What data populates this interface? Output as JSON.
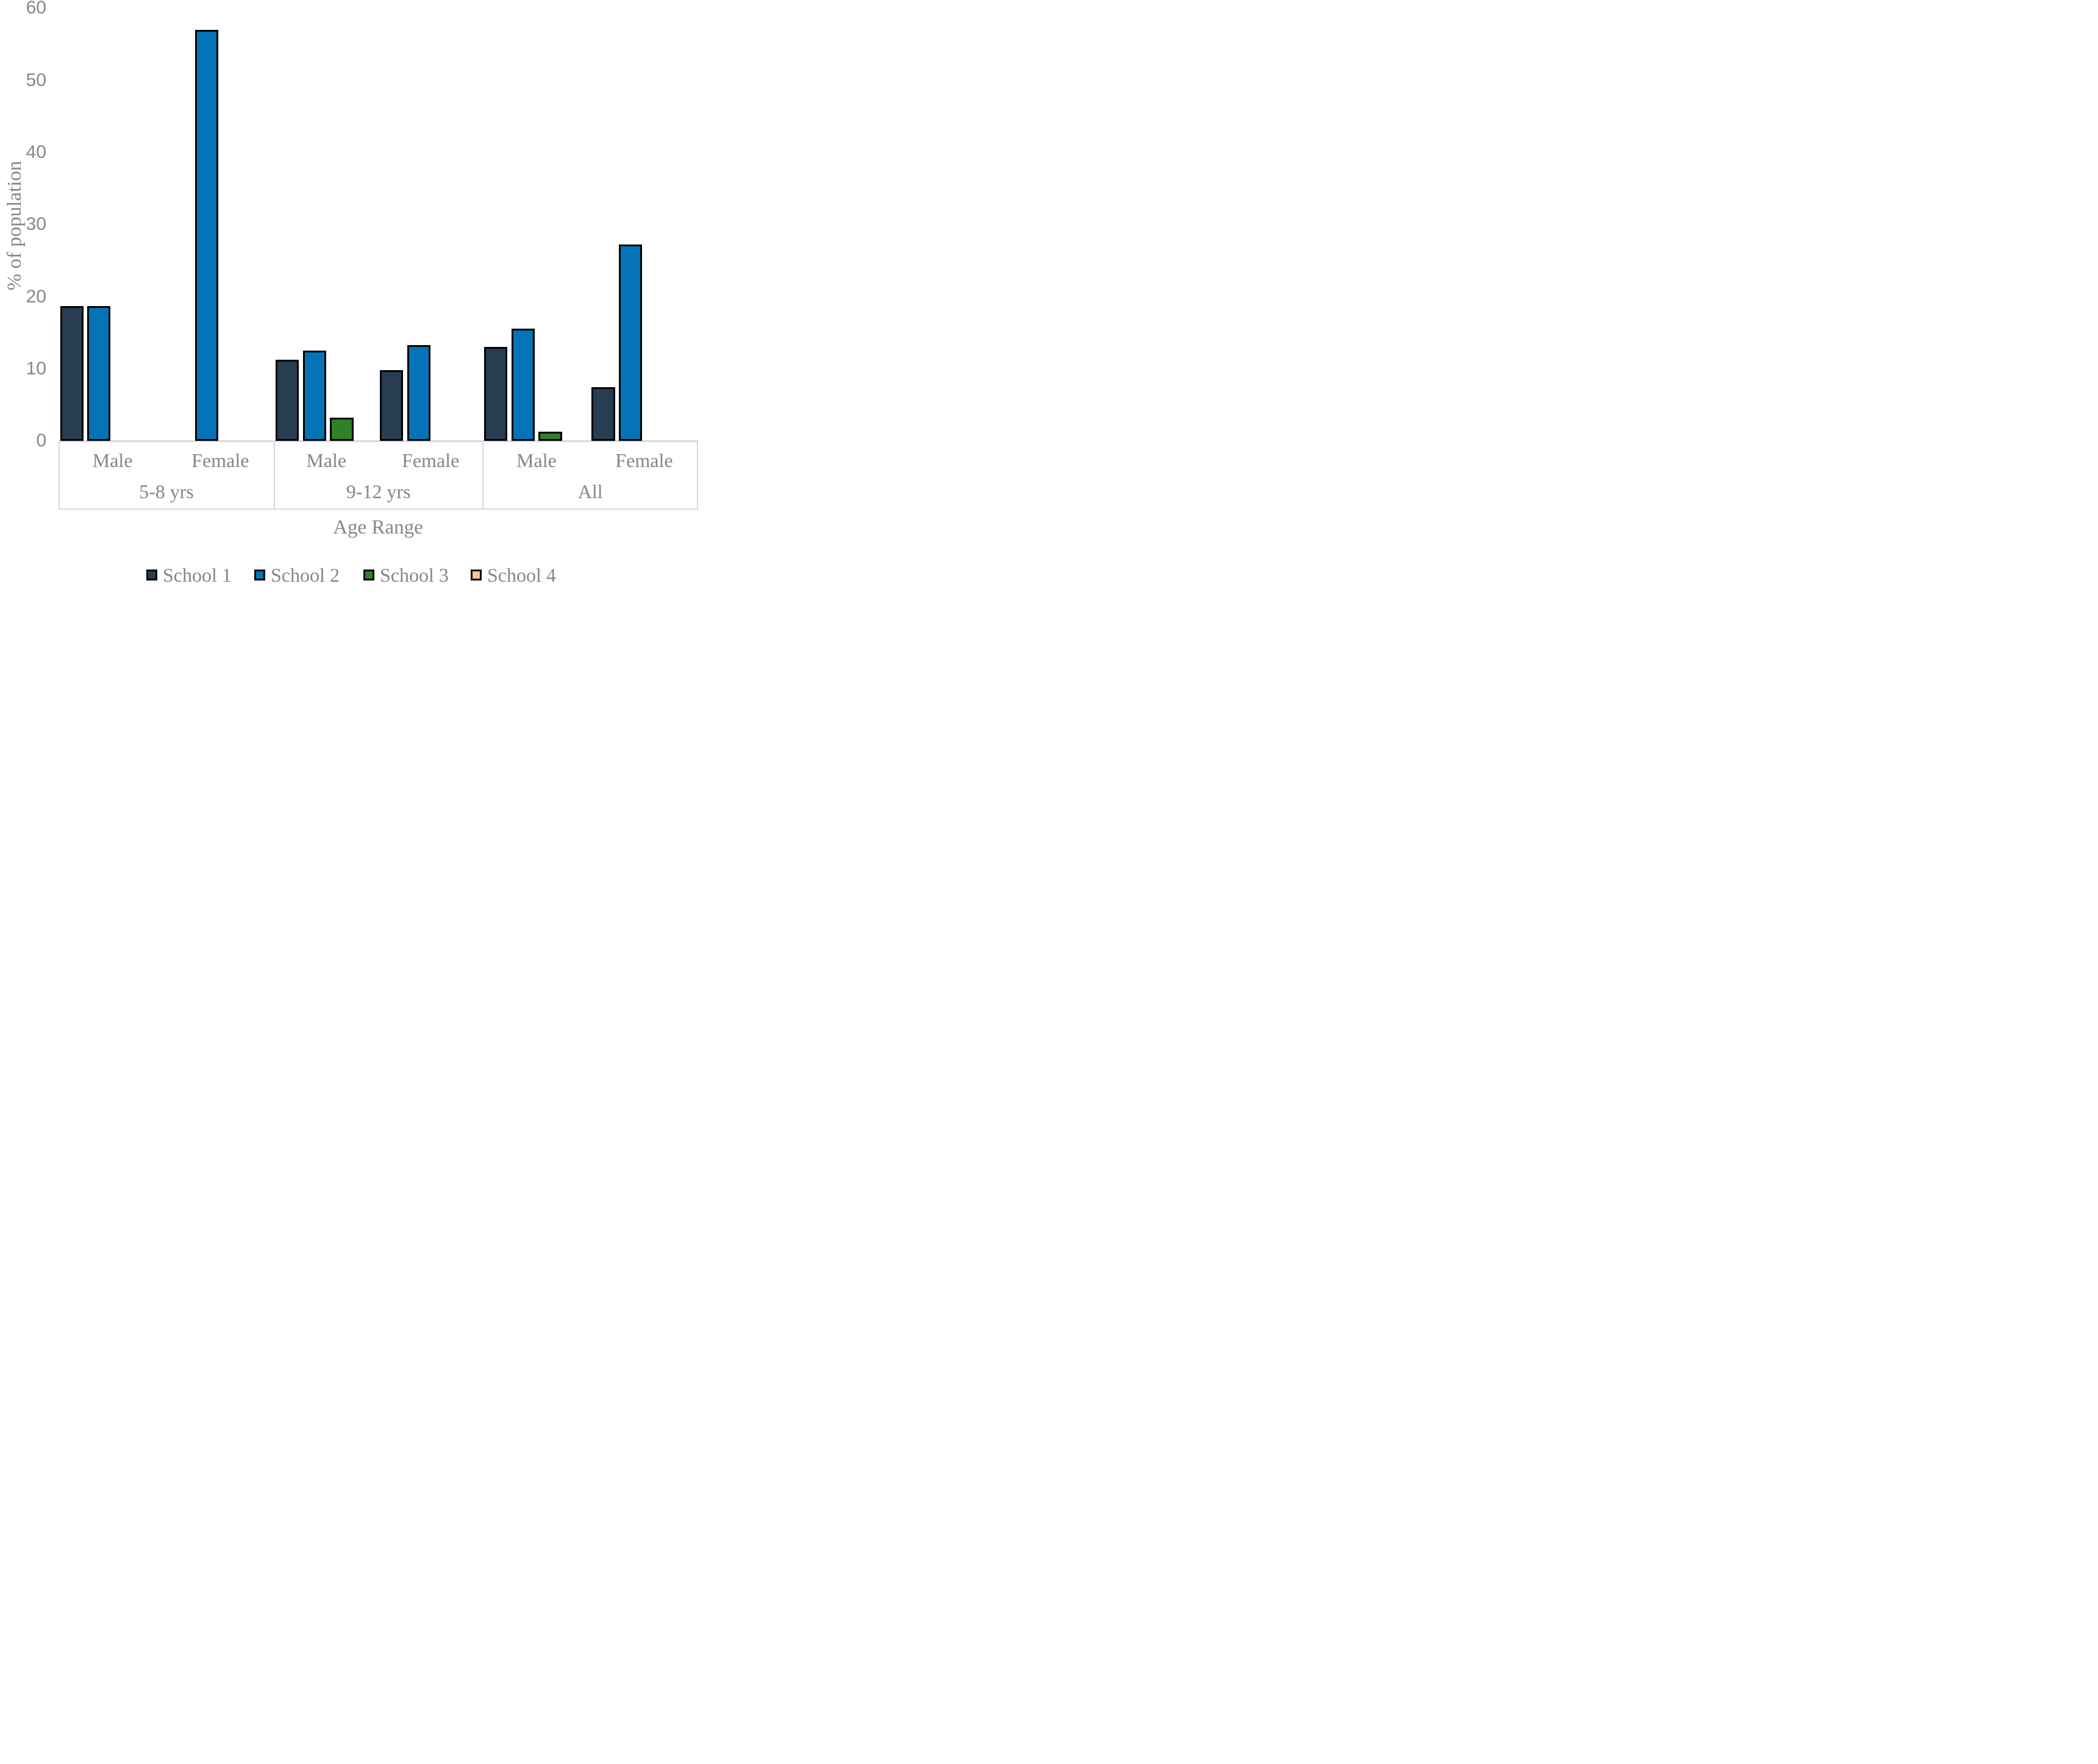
{
  "chart_data": {
    "type": "bar",
    "title": "",
    "xlabel": "Age Range",
    "ylabel": "% of population",
    "ylim": [
      0,
      60
    ],
    "yticks": [
      0,
      10,
      20,
      30,
      40,
      50,
      60
    ],
    "grid": false,
    "legend_position": "bottom",
    "groups": [
      "5-8 yrs",
      "9-12 yrs",
      "All"
    ],
    "subcategories": [
      "Male",
      "Female"
    ],
    "series": [
      {
        "name": "School 1",
        "color": "#293d52",
        "values": [
          [
            18.7,
            0
          ],
          [
            11.3,
            9.8
          ],
          [
            13.0,
            7.5
          ]
        ]
      },
      {
        "name": "School 2",
        "color": "#0473b8",
        "values": [
          [
            18.7,
            57.0
          ],
          [
            12.5,
            13.3
          ],
          [
            15.6,
            27.2
          ]
        ]
      },
      {
        "name": "School 3",
        "color": "#2e8127",
        "values": [
          [
            0,
            0
          ],
          [
            3.2,
            0
          ],
          [
            1.3,
            0
          ]
        ]
      },
      {
        "name": "School 4",
        "color": "#f9c398",
        "values": [
          [
            0,
            0
          ],
          [
            0,
            0
          ],
          [
            0,
            0
          ]
        ]
      }
    ],
    "axis_color": "#d9d9d9",
    "label_color": "#878787",
    "bar_border_color": "#000000"
  }
}
